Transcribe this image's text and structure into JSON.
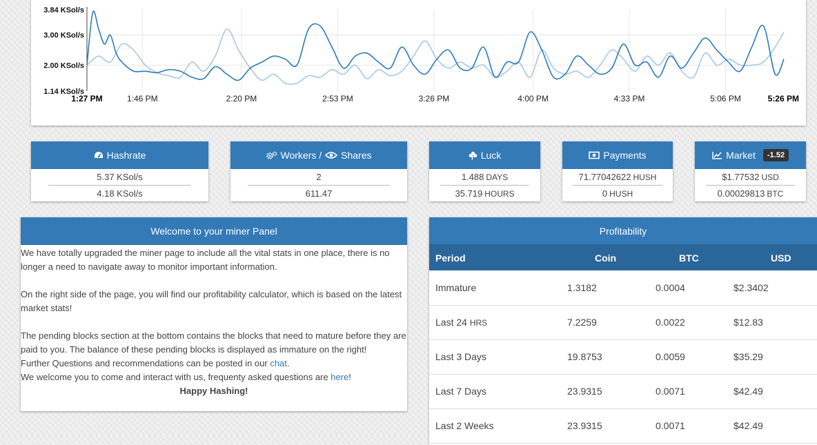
{
  "chart_data": {
    "type": "line",
    "y_ticks": [
      "3.84 KSol/s",
      "3.00 KSol/s",
      "2.00 KSol/s",
      "1.14 KSol/s"
    ],
    "y_tick_values": [
      3.84,
      3.0,
      2.0,
      1.14
    ],
    "ylim": [
      1.14,
      3.84
    ],
    "x_ticks": [
      "1:27 PM",
      "1:46 PM",
      "2:20 PM",
      "2:53 PM",
      "3:26 PM",
      "4:00 PM",
      "4:33 PM",
      "5:06 PM",
      "5:26 PM"
    ],
    "x_tick_minutes": [
      0,
      19,
      53,
      86,
      119,
      153,
      186,
      219,
      239
    ],
    "grid": true,
    "series": [
      {
        "color": "#2b7bb9",
        "x": [
          0,
          2,
          4,
          6,
          8,
          10,
          12,
          16,
          20,
          24,
          28,
          32,
          36,
          40,
          44,
          48,
          52,
          56,
          60,
          64,
          68,
          72,
          76,
          80,
          84,
          88,
          92,
          96,
          100,
          104,
          108,
          112,
          116,
          120,
          124,
          128,
          132,
          136,
          140,
          144,
          148,
          152,
          156,
          160,
          164,
          168,
          172,
          176,
          180,
          184,
          188,
          192,
          196,
          200,
          204,
          208,
          212,
          216,
          220,
          224,
          228,
          232,
          236,
          239
        ],
        "values": [
          2.0,
          3.75,
          3.2,
          2.7,
          3.0,
          2.4,
          2.1,
          1.8,
          1.8,
          1.75,
          1.85,
          1.8,
          1.6,
          1.55,
          1.95,
          1.7,
          1.5,
          1.9,
          2.1,
          2.3,
          2.2,
          2.0,
          3.2,
          3.3,
          2.6,
          1.9,
          2.3,
          2.4,
          2.1,
          1.9,
          2.6,
          2.0,
          1.7,
          2.2,
          2.5,
          1.9,
          1.9,
          2.6,
          1.6,
          2.1,
          2.1,
          3.1,
          2.5,
          1.6,
          1.7,
          2.3,
          2.0,
          1.7,
          1.9,
          2.7,
          2.0,
          2.1,
          1.6,
          2.3,
          1.9,
          2.4,
          2.9,
          2.5,
          2.1,
          1.8,
          2.6,
          3.3,
          1.7,
          2.2
        ]
      },
      {
        "color": "#a9c8e4",
        "x": [
          0,
          4,
          8,
          12,
          16,
          20,
          24,
          28,
          32,
          36,
          40,
          44,
          48,
          52,
          56,
          60,
          64,
          68,
          72,
          76,
          80,
          84,
          88,
          92,
          96,
          100,
          104,
          108,
          112,
          116,
          120,
          124,
          128,
          132,
          136,
          140,
          144,
          148,
          152,
          156,
          160,
          164,
          168,
          172,
          176,
          180,
          184,
          188,
          192,
          196,
          200,
          204,
          208,
          212,
          216,
          220,
          224,
          228,
          232,
          236,
          239
        ],
        "values": [
          2.0,
          2.3,
          2.1,
          2.7,
          2.5,
          2.0,
          1.75,
          1.65,
          1.6,
          2.1,
          1.8,
          2.3,
          3.2,
          2.5,
          1.9,
          1.5,
          1.7,
          1.4,
          1.4,
          1.65,
          1.6,
          1.85,
          1.7,
          2.0,
          1.55,
          1.85,
          1.65,
          1.8,
          2.3,
          2.8,
          2.2,
          1.9,
          2.1,
          1.9,
          2.0,
          1.6,
          1.8,
          2.1,
          1.6,
          2.5,
          1.9,
          1.7,
          1.8,
          1.6,
          2.0,
          2.5,
          2.2,
          1.8,
          2.3,
          2.0,
          2.4,
          1.8,
          1.6,
          2.4,
          2.0,
          2.2,
          2.0,
          2.0,
          2.1,
          2.6,
          3.1
        ]
      }
    ]
  },
  "cards": {
    "hashrate": {
      "title": "Hashrate",
      "row1": "5.37 KSol/s",
      "row2": "4.18 KSol/s"
    },
    "workers": {
      "title_a": "Workers /",
      "title_b": "Shares",
      "row1": "2",
      "row2": "611.47"
    },
    "luck": {
      "title": "Luck",
      "row1_value": "1.488",
      "row1_unit": "DAYS",
      "row2_value": "35.719",
      "row2_unit": "HOURS"
    },
    "payments": {
      "title": "Payments",
      "row1_value": "71.77042622",
      "row1_unit": "HUSH",
      "row2_value": "0",
      "row2_unit": "HUSH"
    },
    "market": {
      "title": "Market",
      "badge": "-1.52",
      "row1_value": "$1.77532",
      "row1_unit": "USD",
      "row2_value": "0.00029813",
      "row2_unit": "BTC"
    }
  },
  "welcome": {
    "title": "Welcome to your miner Panel",
    "p1": "We have totally upgraded the miner page to include all the vital stats in one place, there is no longer a need to navigate away to monitor important information.",
    "p2": "On the right side of the page, you will find our profitability calculator, which is based on the latest market stats!",
    "p3a": "The pending blocks section at the bottom contains the blocks that need to mature before they are",
    "p3b": "paid to you. The balance of these pending blocks is displayed as immature on the right!",
    "p4_text": "Further Questions and recommendations can be posted in our",
    "p4_link": "chat",
    "p5_text": "We welcome you to come and interact with us, frequenty asked questions are",
    "p5_link": "here",
    "happy": "Happy Hashing!"
  },
  "profitability": {
    "title": "Profitability",
    "headers": [
      "Period",
      "Coin",
      "BTC",
      "USD"
    ],
    "rows": [
      {
        "period": "Immature",
        "period_small": "",
        "coin": "1.3182",
        "btc": "0.0004",
        "usd": "$2.3402"
      },
      {
        "period": "Last 24",
        "period_small": "HRS",
        "coin": "7.2259",
        "btc": "0.0022",
        "usd": "$12.83"
      },
      {
        "period": "Last 3 Days",
        "period_small": "",
        "coin": "19.8753",
        "btc": "0.0059",
        "usd": "$35.29"
      },
      {
        "period": "Last 7 Days",
        "period_small": "",
        "coin": "23.9315",
        "btc": "0.0071",
        "usd": "$42.49"
      },
      {
        "period": "Last 2 Weeks",
        "period_small": "",
        "coin": "23.9315",
        "btc": "0.0071",
        "usd": "$42.49"
      }
    ]
  }
}
